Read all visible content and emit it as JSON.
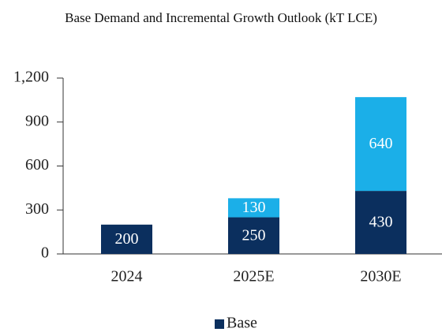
{
  "chart_data": {
    "type": "stacked_bar",
    "title": "Base Demand and Incremental Growth Outlook (kT LCE)",
    "categories": [
      "2024",
      "2025E",
      "2030E"
    ],
    "series": [
      {
        "name": "Base",
        "color": "#0b2f5e",
        "values": [
          200,
          250,
          430
        ]
      },
      {
        "color": "#1bafe8",
        "values": [
          null,
          130,
          640
        ]
      }
    ],
    "ylim": [
      0,
      1200
    ],
    "yticks": [
      0,
      300,
      600,
      900,
      {
        "value": 1200,
        "label": "1,200"
      }
    ],
    "legend": "bottom"
  }
}
